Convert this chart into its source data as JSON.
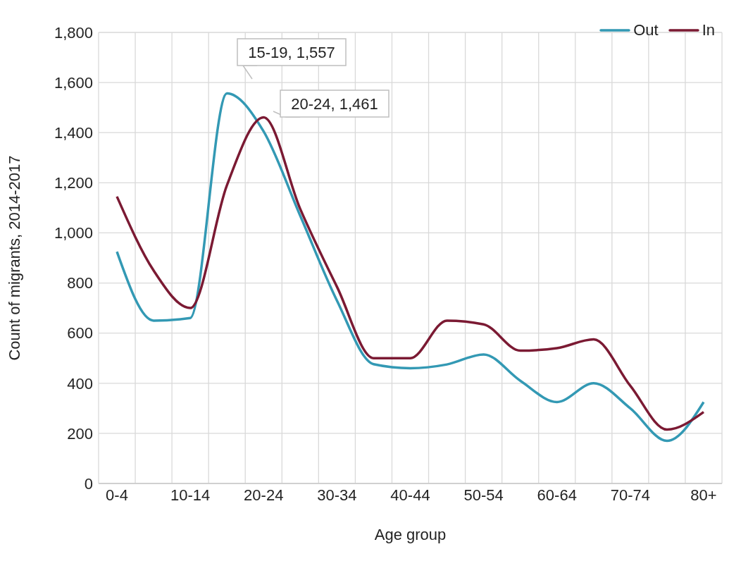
{
  "chart_data": {
    "type": "line",
    "xlabel": "Age group",
    "ylabel": "Count of migrants, 2014-2017",
    "categories": [
      "0-4",
      null,
      "10-14",
      null,
      "20-24",
      null,
      "30-34",
      null,
      "40-44",
      null,
      "50-54",
      null,
      "60-64",
      null,
      "70-74",
      null,
      "80+"
    ],
    "series": [
      {
        "name": "Out",
        "color": "#3399b4",
        "values": [
          925,
          650,
          660,
          1557,
          1405,
          1068,
          730,
          476,
          460,
          475,
          515,
          410,
          325,
          400,
          300,
          170,
          325
        ]
      },
      {
        "name": "In",
        "color": "#7b1a33",
        "values": [
          1145,
          850,
          700,
          1190,
          1461,
          1095,
          785,
          500,
          500,
          650,
          635,
          530,
          540,
          575,
          390,
          215,
          285
        ]
      }
    ],
    "ylim": [
      0,
      1800
    ],
    "yticks": [
      0,
      {
        "value": 200,
        "label": "200"
      },
      {
        "value": 400,
        "label": "400"
      },
      {
        "value": 600,
        "label": "600"
      },
      {
        "value": 800,
        "label": "800"
      },
      {
        "value": 1000,
        "label": "1,000"
      },
      {
        "value": 1200,
        "label": "1,200"
      },
      {
        "value": 1400,
        "label": "1,400"
      },
      {
        "value": 1600,
        "label": "1,600"
      },
      {
        "value": 1800,
        "label": "1,800"
      }
    ],
    "annotations": [
      "15-19, 1,557",
      "20-24, 1,461"
    ],
    "grid": true,
    "legend": "top right",
    "marker": "none",
    "line_style": "solid"
  }
}
